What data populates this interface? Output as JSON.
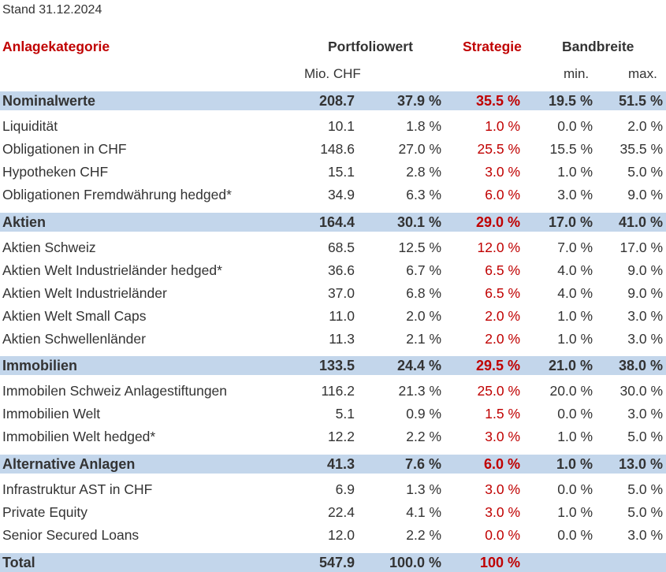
{
  "stand": "Stand 31.12.2024",
  "headers": {
    "category": "Anlagekategorie",
    "portfoliowert": "Portfoliowert",
    "strategie": "Strategie",
    "bandbreite": "Bandbreite",
    "unit": "Mio. CHF",
    "min": "min.",
    "max": "max."
  },
  "rows": [
    {
      "type": "cat",
      "name": "Nominalwerte",
      "value": "208.7",
      "pct": "37.9 %",
      "strategie": "35.5 %",
      "min": "19.5 %",
      "max": "51.5 %"
    },
    {
      "type": "item",
      "name": "Liquidität",
      "value": "10.1",
      "pct": "1.8 %",
      "strategie": "1.0 %",
      "min": "0.0 %",
      "max": "2.0 %"
    },
    {
      "type": "item",
      "name": "Obligationen in CHF",
      "value": "148.6",
      "pct": "27.0 %",
      "strategie": "25.5 %",
      "min": "15.5 %",
      "max": "35.5 %"
    },
    {
      "type": "item",
      "name": "Hypotheken CHF",
      "value": "15.1",
      "pct": "2.8 %",
      "strategie": "3.0 %",
      "min": "1.0 %",
      "max": "5.0 %"
    },
    {
      "type": "item",
      "name": "Obligationen Fremdwährung hedged*",
      "value": "34.9",
      "pct": "6.3 %",
      "strategie": "6.0 %",
      "min": "3.0 %",
      "max": "9.0 %"
    },
    {
      "type": "cat",
      "name": "Aktien",
      "value": "164.4",
      "pct": "30.1 %",
      "strategie": "29.0 %",
      "min": "17.0 %",
      "max": "41.0 %"
    },
    {
      "type": "item",
      "name": "Aktien Schweiz",
      "value": "68.5",
      "pct": "12.5 %",
      "strategie": "12.0 %",
      "min": "7.0 %",
      "max": "17.0 %"
    },
    {
      "type": "item",
      "name": "Aktien Welt Industrieländer hedged*",
      "value": "36.6",
      "pct": "6.7 %",
      "strategie": "6.5 %",
      "min": "4.0 %",
      "max": "9.0 %"
    },
    {
      "type": "item",
      "name": "Aktien Welt Industrieländer",
      "value": "37.0",
      "pct": "6.8 %",
      "strategie": "6.5 %",
      "min": "4.0 %",
      "max": "9.0 %"
    },
    {
      "type": "item",
      "name": "Aktien Welt Small Caps",
      "value": "11.0",
      "pct": "2.0 %",
      "strategie": "2.0 %",
      "min": "1.0 %",
      "max": "3.0 %"
    },
    {
      "type": "item",
      "name": "Aktien Schwellenländer",
      "value": "11.3",
      "pct": "2.1 %",
      "strategie": "2.0 %",
      "min": "1.0 %",
      "max": "3.0 %"
    },
    {
      "type": "cat",
      "name": "Immobilien",
      "value": "133.5",
      "pct": "24.4 %",
      "strategie": "29.5 %",
      "min": "21.0 %",
      "max": "38.0 %"
    },
    {
      "type": "item",
      "name": "Immobilen Schweiz Anlagestiftungen",
      "value": "116.2",
      "pct": "21.3 %",
      "strategie": "25.0 %",
      "min": "20.0 %",
      "max": "30.0 %"
    },
    {
      "type": "item",
      "name": "Immobilien Welt",
      "value": "5.1",
      "pct": "0.9 %",
      "strategie": "1.5 %",
      "min": "0.0 %",
      "max": "3.0 %"
    },
    {
      "type": "item",
      "name": "Immobilien Welt hedged*",
      "value": "12.2",
      "pct": "2.2 %",
      "strategie": "3.0 %",
      "min": "1.0 %",
      "max": "5.0 %"
    },
    {
      "type": "cat",
      "name": "Alternative Anlagen",
      "value": "41.3",
      "pct": "7.6 %",
      "strategie": "6.0 %",
      "min": "1.0 %",
      "max": "13.0 %"
    },
    {
      "type": "item",
      "name": "Infrastruktur AST in CHF",
      "value": "6.9",
      "pct": "1.3 %",
      "strategie": "3.0 %",
      "min": "0.0 %",
      "max": "5.0 %"
    },
    {
      "type": "item",
      "name": "Private Equity",
      "value": "22.4",
      "pct": "4.1 %",
      "strategie": "3.0 %",
      "min": "1.0 %",
      "max": "5.0 %"
    },
    {
      "type": "item",
      "name": "Senior Secured Loans",
      "value": "12.0",
      "pct": "2.2 %",
      "strategie": "0.0 %",
      "min": "0.0 %",
      "max": "3.0 %"
    },
    {
      "type": "cat",
      "name": "Total",
      "value": "547.9",
      "pct": "100.0 %",
      "strategie": "100 %",
      "min": "",
      "max": ""
    }
  ],
  "colors": {
    "accent_red": "#c00000",
    "category_band": "#c3d6eb",
    "text": "#333333"
  }
}
